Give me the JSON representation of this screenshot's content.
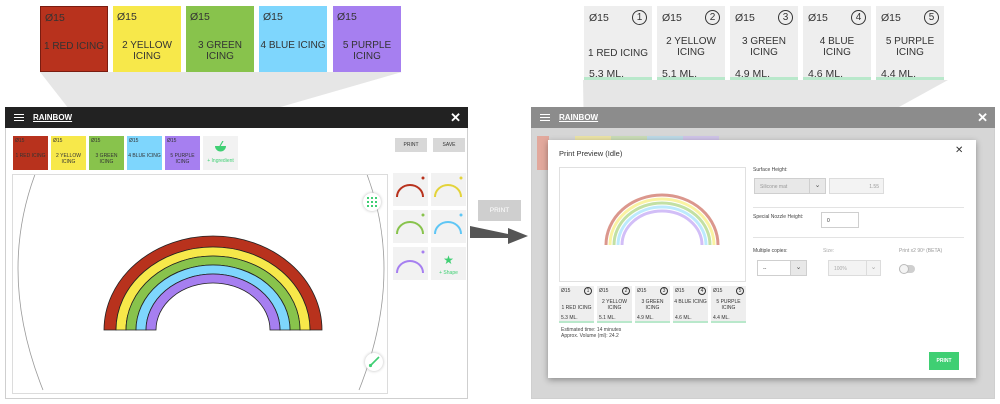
{
  "colors": {
    "red": "#b8321d",
    "yellow": "#f7e84a",
    "green": "#88c34c",
    "blue": "#7ed6fd",
    "purple": "#a67ff0",
    "accent_green": "#3fcf73"
  },
  "zoom_left": [
    {
      "dia": "Ø15",
      "name": "1 RED ICING",
      "color": "red"
    },
    {
      "dia": "Ø15",
      "name": "2 YELLOW ICING",
      "color": "yellow"
    },
    {
      "dia": "Ø15",
      "name": "3 GREEN ICING",
      "color": "green"
    },
    {
      "dia": "Ø15",
      "name": "4 BLUE ICING",
      "color": "blue"
    },
    {
      "dia": "Ø15",
      "name": "5 PURPLE ICING",
      "color": "purple"
    }
  ],
  "zoom_right": [
    {
      "dia": "Ø15",
      "num": "1",
      "name": "1 RED ICING",
      "vol": "5.3 ML."
    },
    {
      "dia": "Ø15",
      "num": "2",
      "name": "2 YELLOW ICING",
      "vol": "5.1 ML."
    },
    {
      "dia": "Ø15",
      "num": "3",
      "name": "3 GREEN ICING",
      "vol": "4.9 ML."
    },
    {
      "dia": "Ø15",
      "num": "4",
      "name": "4 BLUE ICING",
      "vol": "4.6 ML."
    },
    {
      "dia": "Ø15",
      "num": "5",
      "name": "5 PURPLE ICING",
      "vol": "4.4 ML."
    }
  ],
  "editor": {
    "title": "RAINBOW",
    "close": "✕",
    "print_label": "PRINT",
    "save_label": "SAVE",
    "add_ingredient": "+ Ingredient",
    "add_shape": "+ Shape",
    "grid_icon": "grid-icon",
    "brush_icon": "brush-icon"
  },
  "center_print_button": "PRINT",
  "preview_window": {
    "title": "RAINBOW",
    "close": "✕"
  },
  "modal": {
    "title": "Print Preview (Idle)",
    "close": "✕",
    "surface_height_label": "Surface Height:",
    "surface_select": "Silicone mat",
    "surface_value": "1.55",
    "nozzle_label": "Special Nozzle Height:",
    "nozzle_value": "0",
    "copies_label": "Multiple copies:",
    "copies_value": "--",
    "size_label": "Size:",
    "size_value": "100%",
    "rotate_label": "Print x2 90º (BETA)",
    "estimated_time": "Estimated time: 14 minutes",
    "approx_volume": "Approx. Volume (ml): 24.2",
    "print_button": "PRINT",
    "cards": [
      {
        "dia": "Ø15",
        "num": "1",
        "name": "1 RED ICING",
        "vol": "5.3 ML."
      },
      {
        "dia": "Ø15",
        "num": "2",
        "name": "2 YELLOW ICING",
        "vol": "5.1 ML."
      },
      {
        "dia": "Ø15",
        "num": "3",
        "name": "3 GREEN ICING",
        "vol": "4.9 ML."
      },
      {
        "dia": "Ø15",
        "num": "4",
        "name": "4 BLUE ICING",
        "vol": "4.6 ML."
      },
      {
        "dia": "Ø15",
        "num": "5",
        "name": "5 PURPLE ICING",
        "vol": "4.4 ML."
      }
    ]
  }
}
